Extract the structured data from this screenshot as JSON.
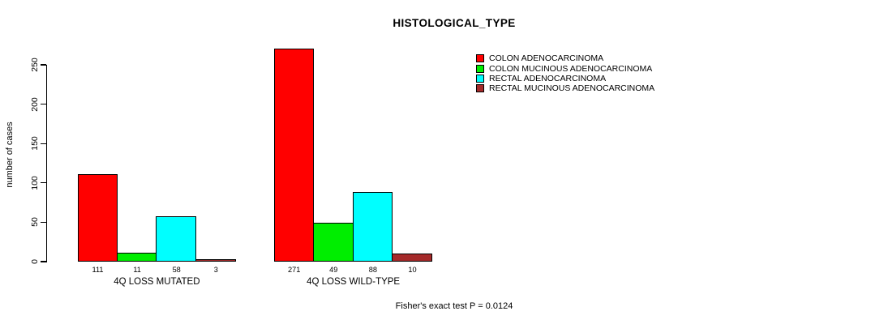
{
  "chart_data": {
    "type": "bar",
    "title": "HISTOLOGICAL_TYPE",
    "ylabel": "number of cases",
    "xlabel": "",
    "ylim": [
      0,
      250
    ],
    "yticks": [
      0,
      50,
      100,
      150,
      200,
      250
    ],
    "grid": false,
    "legend_position": "top-right",
    "categories": [
      "4Q LOSS MUTATED",
      "4Q LOSS WILD-TYPE"
    ],
    "series": [
      {
        "name": "COLON ADENOCARCINOMA",
        "color": "#FF0000",
        "values": [
          111,
          271
        ]
      },
      {
        "name": "COLON MUCINOUS ADENOCARCINOMA",
        "color": "#00EE00",
        "values": [
          11,
          49
        ]
      },
      {
        "name": "RECTAL ADENOCARCINOMA",
        "color": "#00FFFF",
        "values": [
          58,
          88
        ]
      },
      {
        "name": "RECTAL MUCINOUS ADENOCARCINOMA",
        "color": "#A52A2A",
        "values": [
          3,
          10
        ]
      }
    ],
    "bar_value_labels": {
      "4Q LOSS MUTATED": [
        111,
        11,
        58,
        3
      ],
      "4Q LOSS WILD-TYPE": [
        271,
        49,
        88,
        10
      ]
    },
    "annotation": "Fisher's exact test P = 0.0124"
  }
}
